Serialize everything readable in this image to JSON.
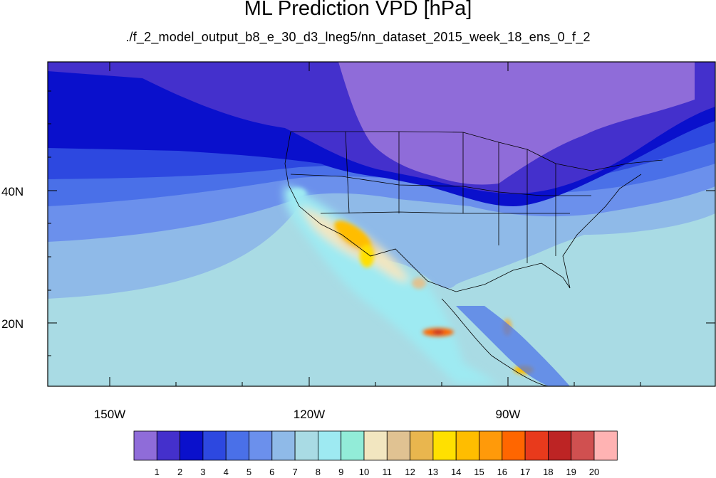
{
  "title": "ML Prediction VPD [hPa]",
  "subtitle": "./f_2_model_output_b8_e_30_d3_lneg5/nn_dataset_2015_week_18_ens_0_f_2",
  "map": {
    "y_axis_labels": [
      "40N",
      "20N"
    ],
    "x_axis_labels": [
      "150W",
      "120W",
      "90W"
    ]
  },
  "colorbar": {
    "labels": [
      "1",
      "2",
      "3",
      "4",
      "5",
      "6",
      "7",
      "8",
      "9",
      "10",
      "11",
      "12",
      "13",
      "14",
      "15",
      "16",
      "17",
      "18",
      "19",
      "20"
    ],
    "colors": [
      "#8f6cd9",
      "#4430cc",
      "#0a10cc",
      "#2d48e0",
      "#4a70e8",
      "#6b90ec",
      "#8fbae8",
      "#a9dbe4",
      "#9eeaf2",
      "#92ecd8",
      "#f2e6c0",
      "#e0c292",
      "#e9b64e",
      "#ffe000",
      "#ffbd00",
      "#ff9a0a",
      "#ff6600",
      "#e83a1c",
      "#bd2424",
      "#d05050",
      "#ffb3b3"
    ]
  }
}
